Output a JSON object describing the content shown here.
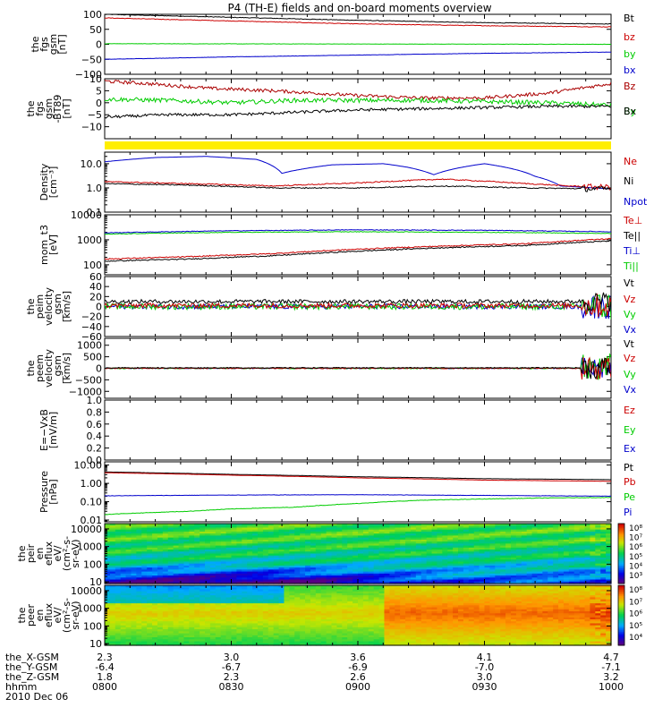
{
  "chart_data": {
    "type": "line",
    "title": "P4 (TH-E) fields and on-board moments overview",
    "time_axis": {
      "rows": [
        {
          "label": "the_X-GSM",
          "values": [
            "2.3",
            "3.0",
            "3.6",
            "4.1",
            "4.7"
          ]
        },
        {
          "label": "the_Y-GSM",
          "values": [
            "-6.4",
            "-6.7",
            "-6.9",
            "-7.0",
            "-7.1"
          ]
        },
        {
          "label": "the_Z-GSM",
          "values": [
            "1.8",
            "2.3",
            "2.6",
            "3.0",
            "3.2"
          ]
        },
        {
          "label": "hhmm",
          "values": [
            "0800",
            "0830",
            "0900",
            "0930",
            "1000"
          ]
        }
      ],
      "date": "2010 Dec 06"
    },
    "panels": [
      {
        "id": "fgs-gsm",
        "ylabel_lines": [
          "the",
          "fgs",
          "gsm",
          "[nT]"
        ],
        "ylim": [
          -100,
          100
        ],
        "yticks": [
          "100",
          "50",
          "0",
          "−50",
          "−100"
        ],
        "legend": [
          "Bt",
          "bz",
          "by",
          "bx"
        ],
        "series": [
          {
            "name": "Bt",
            "color": "#000000",
            "t": [
              0,
              30,
              60,
              90,
              120
            ],
            "y": [
              100,
              90,
              80,
              72,
              68
            ],
            "noise": 1
          },
          {
            "name": "bz",
            "color": "#cc0000",
            "t": [
              0,
              30,
              60,
              90,
              120
            ],
            "y": [
              88,
              78,
              68,
              62,
              58
            ],
            "noise": 1
          },
          {
            "name": "by",
            "color": "#00cc00",
            "t": [
              0,
              60,
              120
            ],
            "y": [
              2,
              1,
              0
            ],
            "noise": 0.5
          },
          {
            "name": "bx",
            "color": "#0000cc",
            "t": [
              0,
              30,
              60,
              90,
              120
            ],
            "y": [
              -50,
              -42,
              -36,
              -30,
              -26
            ],
            "noise": 0.5
          }
        ]
      },
      {
        "id": "fgs-gsm-detrended",
        "ylabel_lines": [
          "the",
          "fgs",
          "gsm",
          "-BT89",
          "[nT]"
        ],
        "ylim": [
          -15,
          10
        ],
        "yticks": [
          "10",
          "5",
          "0",
          "−5",
          "−10"
        ],
        "legend": [
          "Bz",
          "By",
          "Bx"
        ],
        "series": [
          {
            "name": "Bz",
            "color": "#aa0000",
            "t": [
              0,
              10,
              25,
              40,
              60,
              75,
              90,
              105,
              120
            ],
            "y": [
              9,
              8,
              6,
              5,
              3,
              2,
              2,
              4,
              8
            ],
            "noise": 0.7
          },
          {
            "name": "By",
            "color": "#00cc00",
            "t": [
              0,
              15,
              30,
              45,
              60,
              75,
              90,
              105,
              120
            ],
            "y": [
              1.5,
              1,
              0,
              1,
              1,
              1,
              0.5,
              0,
              -1
            ],
            "noise": 0.9
          },
          {
            "name": "Bx",
            "color": "#000000",
            "t": [
              0,
              15,
              30,
              45,
              60,
              75,
              90,
              105,
              120
            ],
            "y": [
              -6,
              -5,
              -5,
              -4,
              -3,
              -2.5,
              -2,
              -1.5,
              -1.5
            ],
            "noise": 0.6
          }
        ]
      },
      {
        "id": "density",
        "ylabel_lines": [
          "Density",
          "[cm⁻³]"
        ],
        "log": true,
        "ylim": [
          0.1,
          30
        ],
        "yticks_log": [
          {
            "v": 10,
            "label": "10.0"
          },
          {
            "v": 1,
            "label": "1.0"
          },
          {
            "v": 0.1,
            "label": "0.1"
          }
        ],
        "legend": [
          "Ne",
          "Ni",
          "Npot"
        ],
        "series": [
          {
            "name": "Npot",
            "color": "#0000cc",
            "t": [
              0,
              12,
              24,
              36,
              42,
              54,
              66,
              72,
              78,
              90,
              102,
              108,
              120
            ],
            "y": [
              12,
              18,
              20,
              15,
              4,
              9,
              10,
              7,
              3.5,
              10,
              3,
              1.2,
              0.9
            ],
            "noise": 0
          },
          {
            "name": "Ne",
            "color": "#cc0000",
            "t": [
              0,
              20,
              40,
              60,
              80,
              100,
              110,
              120
            ],
            "y": [
              1.8,
              1.5,
              1.2,
              1.6,
              2.3,
              1.5,
              1.2,
              1.1
            ],
            "noise": 0.05
          },
          {
            "name": "Ni",
            "color": "#000000",
            "t": [
              0,
              20,
              40,
              60,
              80,
              100,
              120
            ],
            "y": [
              1.5,
              1.3,
              1.0,
              1.0,
              1.2,
              1.0,
              0.9
            ],
            "noise": 0.05
          }
        ]
      },
      {
        "id": "temperature",
        "ylabel_lines": [
          "mom_t3",
          "[eV]"
        ],
        "log": true,
        "ylim": [
          40,
          10000
        ],
        "yticks_log": [
          {
            "v": 10000,
            "label": "10000"
          },
          {
            "v": 1000,
            "label": "1000"
          },
          {
            "v": 100,
            "label": "100"
          }
        ],
        "legend": [
          "Te⊥",
          "Te||",
          "Ti⊥",
          "Ti||"
        ],
        "legend_colors": [
          "#cc0000",
          "#000000",
          "#0000cc",
          "#00cc00"
        ],
        "series": [
          {
            "name": "Ti||",
            "color": "#00cc00",
            "t": [
              0,
              30,
              60,
              90,
              120
            ],
            "y": [
              1700,
              2000,
              2100,
              2000,
              1800
            ],
            "noise": 0.03
          },
          {
            "name": "Ti⊥",
            "color": "#0000cc",
            "t": [
              0,
              30,
              60,
              90,
              120
            ],
            "y": [
              1900,
              2300,
              2500,
              2400,
              2100
            ],
            "noise": 0.03
          },
          {
            "name": "Te⊥",
            "color": "#cc0000",
            "t": [
              0,
              20,
              40,
              60,
              80,
              100,
              120
            ],
            "y": [
              170,
              210,
              280,
              420,
              560,
              700,
              1100
            ],
            "noise": 0.05
          },
          {
            "name": "Te||",
            "color": "#000000",
            "t": [
              0,
              20,
              40,
              60,
              80,
              100,
              120
            ],
            "y": [
              140,
              170,
              230,
              350,
              480,
              600,
              900
            ],
            "noise": 0.05
          }
        ]
      },
      {
        "id": "peim-velocity",
        "ylabel_lines": [
          "the",
          "peim",
          "velocity",
          "_gsm",
          "[km/s]"
        ],
        "ylim": [
          -60,
          60
        ],
        "yticks": [
          "60",
          "40",
          "20",
          "0",
          "−20",
          "−40",
          "−60"
        ],
        "legend": [
          "Vt",
          "Vz",
          "Vy",
          "Vx"
        ],
        "series": [
          {
            "name": "Vx",
            "color": "#0000cc",
            "t": [
              0,
              120
            ],
            "y": [
              0,
              0
            ],
            "noise": 5
          },
          {
            "name": "Vy",
            "color": "#00cc00",
            "t": [
              0,
              120
            ],
            "y": [
              0,
              0
            ],
            "noise": 6
          },
          {
            "name": "Vz",
            "color": "#cc0000",
            "t": [
              0,
              120
            ],
            "y": [
              2,
              2
            ],
            "noise": 5
          },
          {
            "name": "Vt",
            "color": "#000000",
            "t": [
              0,
              120
            ],
            "y": [
              10,
              10
            ],
            "noise": 4
          }
        ]
      },
      {
        "id": "peem-velocity",
        "ylabel_lines": [
          "the",
          "peem",
          "velocity",
          "_gsm",
          "[km/s]"
        ],
        "ylim": [
          -1300,
          1300
        ],
        "yticks": [
          "1000",
          "500",
          "0",
          "−500",
          "−1000"
        ],
        "legend": [
          "Vt",
          "Vz",
          "Vy",
          "Vx"
        ],
        "series": [
          {
            "name": "Vx",
            "color": "#0000cc",
            "t": [
              0,
              120
            ],
            "y": [
              0,
              0
            ],
            "noise": 20
          },
          {
            "name": "Vy",
            "color": "#00cc00",
            "t": [
              0,
              120
            ],
            "y": [
              0,
              0
            ],
            "noise": 25
          },
          {
            "name": "Vz",
            "color": "#cc0000",
            "t": [
              0,
              120
            ],
            "y": [
              0,
              0
            ],
            "noise": 20
          },
          {
            "name": "Vt",
            "color": "#000000",
            "t": [
              0,
              120
            ],
            "y": [
              20,
              20
            ],
            "noise": 20
          }
        ]
      },
      {
        "id": "efield",
        "ylabel_lines": [
          "E=−VxB",
          "[mV/m]"
        ],
        "ylim": [
          0,
          1
        ],
        "yticks": [
          "1.0",
          "0.8",
          "0.6",
          "0.4",
          "0.2",
          "0.0"
        ],
        "legend": [
          "Ez",
          "Ey",
          "Ex"
        ],
        "legend_colors": [
          "#cc0000",
          "#00cc00",
          "#0000cc"
        ],
        "series": []
      },
      {
        "id": "pressure",
        "ylabel_lines": [
          "Pressure",
          "[nPa]"
        ],
        "log": true,
        "ylim": [
          0.008,
          15
        ],
        "yticks_log": [
          {
            "v": 10,
            "label": "10.00"
          },
          {
            "v": 1,
            "label": "1.00"
          },
          {
            "v": 0.1,
            "label": "0.10"
          },
          {
            "v": 0.01,
            "label": "0.01"
          }
        ],
        "legend": [
          "Pt",
          "Pb",
          "Pe",
          "Pi"
        ],
        "legend_colors": [
          "#000000",
          "#cc0000",
          "#00cc00",
          "#0000cc"
        ],
        "series": [
          {
            "name": "Pt",
            "color": "#000000",
            "t": [
              0,
              30,
              60,
              90,
              120
            ],
            "y": [
              4.2,
              3.1,
              2.3,
              1.8,
              1.6
            ],
            "noise": 0.01
          },
          {
            "name": "Pb",
            "color": "#cc0000",
            "t": [
              0,
              30,
              60,
              90,
              120
            ],
            "y": [
              3.8,
              2.8,
              2.0,
              1.5,
              1.3
            ],
            "noise": 0.01
          },
          {
            "name": "Pi",
            "color": "#0000cc",
            "t": [
              0,
              30,
              60,
              90,
              120
            ],
            "y": [
              0.21,
              0.23,
              0.24,
              0.22,
              0.2
            ],
            "noise": 0.02
          },
          {
            "name": "Pe",
            "color": "#00cc00",
            "t": [
              0,
              10,
              20,
              30,
              45,
              60,
              75,
              90,
              105,
              120
            ],
            "y": [
              0.02,
              0.025,
              0.03,
              0.04,
              0.05,
              0.08,
              0.12,
              0.14,
              0.16,
              0.17
            ],
            "noise": 0.03
          }
        ]
      },
      {
        "id": "peir-eflux",
        "type": "heatmap",
        "ylabel_lines": [
          "the",
          "peir",
          "en",
          "eflux",
          "eV/",
          "(cm²-s-",
          "sr-eV)"
        ],
        "log": true,
        "ylim": [
          8,
          20000
        ],
        "yticks_log": [
          {
            "v": 10000,
            "label": "10000"
          },
          {
            "v": 1000,
            "label": "1000"
          },
          {
            "v": 100,
            "label": "100"
          },
          {
            "v": 10,
            "label": "10"
          }
        ],
        "colorbar": {
          "min_exp": 3,
          "max_exp": 8,
          "labels": [
            "10⁸",
            "10⁷",
            "10⁶",
            "10⁵",
            "10⁴",
            "10³"
          ]
        }
      },
      {
        "id": "peer-eflux",
        "type": "heatmap",
        "ylabel_lines": [
          "the",
          "peer",
          "en",
          "eflux",
          "eV/",
          "(cm²-s-",
          "sr-eV)"
        ],
        "log": true,
        "ylim": [
          8,
          20000
        ],
        "yticks_log": [
          {
            "v": 10000,
            "label": "10000"
          },
          {
            "v": 1000,
            "label": "1000"
          },
          {
            "v": 100,
            "label": "100"
          },
          {
            "v": 10,
            "label": "10"
          }
        ],
        "colorbar": {
          "min_exp": 4,
          "max_exp": 8,
          "labels": [
            "10⁸",
            "10⁷",
            "10⁶",
            "10⁵",
            "10⁴"
          ]
        }
      }
    ]
  }
}
